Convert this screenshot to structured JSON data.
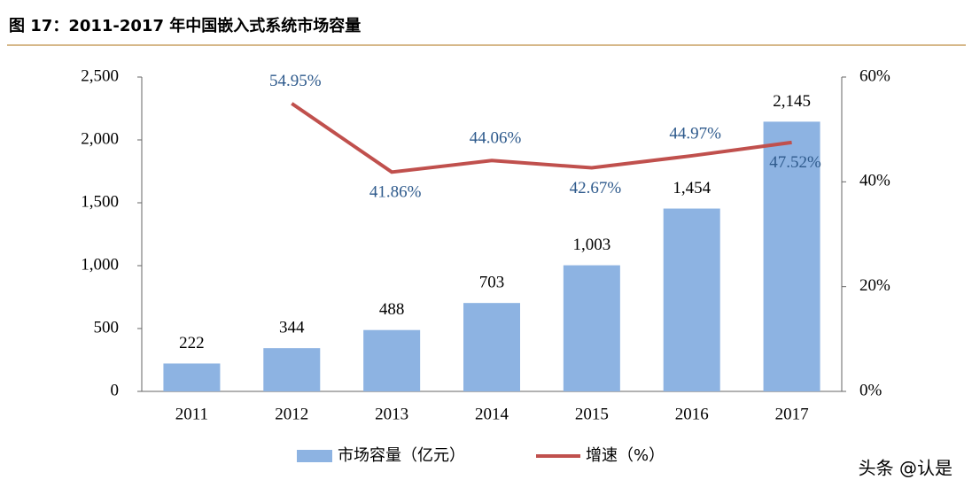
{
  "chart_data": {
    "type": "bar-line",
    "title": "图 17：2011-2017 年中国嵌入式系统市场容量",
    "categories": [
      "2011",
      "2012",
      "2013",
      "2014",
      "2015",
      "2016",
      "2017"
    ],
    "series": [
      {
        "name": "市场容量（亿元）",
        "type": "bar",
        "color": "#8db3e2",
        "values": [
          222,
          344,
          488,
          703,
          1003,
          1454,
          2145
        ],
        "value_labels": [
          "222",
          "344",
          "488",
          "703",
          "1,003",
          "1,454",
          "2,145"
        ]
      },
      {
        "name": "增速（%）",
        "type": "line",
        "axis": "y2",
        "color": "#c0504d",
        "values": [
          null,
          54.95,
          41.86,
          44.06,
          42.67,
          44.97,
          47.52
        ],
        "value_labels": [
          null,
          "54.95%",
          "41.86%",
          "44.06%",
          "42.67%",
          "44.97%",
          "47.52%"
        ]
      }
    ],
    "ylim": [
      0,
      2500
    ],
    "yticks": [
      0,
      500,
      {
        "value": 1000,
        "label": "1,000"
      },
      {
        "value": 1500,
        "label": "1,500"
      },
      {
        "value": 2000,
        "label": "2,000"
      },
      {
        "value": 2500,
        "label": "2,500"
      }
    ],
    "y2lim": [
      0,
      60
    ],
    "y2ticks": [
      {
        "value": 0,
        "label": "0%"
      },
      {
        "value": 20,
        "label": "20%"
      },
      {
        "value": 40,
        "label": "40%"
      },
      {
        "value": 60,
        "label": "60%"
      }
    ],
    "grid": false,
    "legend": "bottom",
    "watermark": "头条 @认是"
  }
}
